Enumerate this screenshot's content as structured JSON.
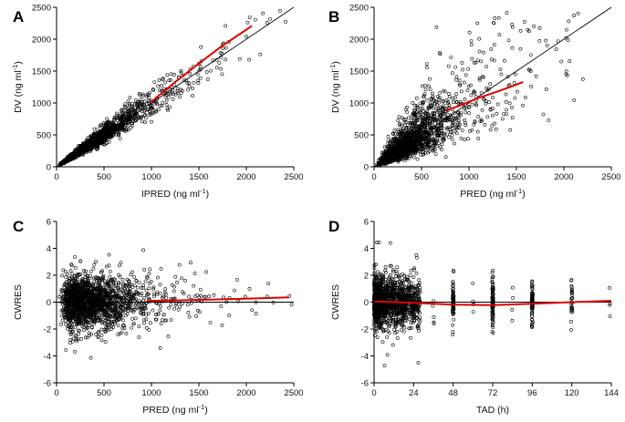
{
  "chart_data": [
    {
      "panel": "A",
      "type": "scatter",
      "xlabel_parts": [
        "IPRED (ng ml",
        "-1",
        ")"
      ],
      "ylabel_parts": [
        "DV (ng ml",
        "-1",
        ")"
      ],
      "xlim": [
        0,
        2500
      ],
      "ylim": [
        0,
        2500
      ],
      "xticks": [
        0,
        500,
        1000,
        1500,
        2000,
        2500
      ],
      "yticks": [
        0,
        500,
        1000,
        1500,
        2000,
        2500
      ],
      "reference": "identity",
      "n_points": 1800,
      "generator": {
        "xmode": "lognorm",
        "xmu": 5.85,
        "xsd": 0.75,
        "relation": "proportional",
        "slope": 1.0,
        "noise_sd": 0.13,
        "clip": [
          5,
          2480
        ]
      },
      "smooth": {
        "x": [
          1000,
          1250,
          1500,
          1750,
          2060
        ],
        "y": [
          1020,
          1330,
          1620,
          1900,
          2210
        ]
      }
    },
    {
      "panel": "B",
      "type": "scatter",
      "xlabel_parts": [
        "PRED (ng ml",
        "-1",
        ")"
      ],
      "ylabel_parts": [
        "DV (ng ml",
        "-1",
        ")"
      ],
      "xlim": [
        0,
        2500
      ],
      "ylim": [
        0,
        2500
      ],
      "xticks": [
        0,
        500,
        1000,
        1500,
        2000,
        2500
      ],
      "yticks": [
        0,
        500,
        1000,
        1500,
        2000,
        2500
      ],
      "reference": "identity",
      "n_points": 1800,
      "generator": {
        "xmode": "lognorm",
        "xmu": 5.85,
        "xsd": 0.72,
        "relation": "proportional",
        "slope": 1.0,
        "noise_sd": 0.4,
        "clip": [
          5,
          2480
        ]
      },
      "smooth": {
        "x": [
          760,
          900,
          1100,
          1300,
          1450,
          1570
        ],
        "y": [
          880,
          960,
          1080,
          1180,
          1260,
          1330
        ]
      }
    },
    {
      "panel": "C",
      "type": "scatter",
      "xlabel_parts": [
        "PRED (ng ml",
        "-1",
        ")"
      ],
      "ylabel_parts": [
        "CWRES",
        "",
        ""
      ],
      "xlim": [
        0,
        2500
      ],
      "ylim": [
        -6,
        6
      ],
      "xticks": [
        0,
        500,
        1000,
        1500,
        2000,
        2500
      ],
      "yticks": [
        -6,
        -4,
        -2,
        0,
        2,
        4,
        6
      ],
      "reference": "zero",
      "n_points": 1800,
      "generator": {
        "xmode": "lognorm",
        "xmu": 5.85,
        "xsd": 0.72,
        "relation": "residual",
        "noise_sd": 1.0,
        "clip": [
          5,
          2480
        ]
      },
      "smooth": {
        "x": [
          950,
          1200,
          1500,
          1800,
          2100,
          2450
        ],
        "y": [
          0.1,
          0.12,
          0.17,
          0.22,
          0.28,
          0.35
        ]
      }
    },
    {
      "panel": "D",
      "type": "scatter",
      "xlabel_parts": [
        "TAD (h)",
        "",
        ""
      ],
      "ylabel_parts": [
        "CWRES",
        "",
        ""
      ],
      "xlim": [
        0,
        144
      ],
      "ylim": [
        -6,
        6
      ],
      "xticks": [
        0,
        24,
        48,
        72,
        96,
        120,
        144
      ],
      "yticks": [
        -6,
        -4,
        -2,
        0,
        2,
        4,
        6
      ],
      "reference": "zero",
      "n_points": 1500,
      "generator": {
        "xmode": "tad",
        "relation": "residual",
        "noise_sd": 1.0,
        "clusters": [
          [
            36,
            5
          ],
          [
            48,
            70
          ],
          [
            60,
            5
          ],
          [
            72,
            90
          ],
          [
            84,
            4
          ],
          [
            96,
            70
          ],
          [
            120,
            28
          ],
          [
            143,
            4
          ]
        ]
      },
      "smooth": {
        "x": [
          0,
          12,
          24,
          48,
          72,
          96,
          120,
          144
        ],
        "y": [
          0.05,
          0.0,
          -0.05,
          -0.18,
          -0.22,
          -0.12,
          0.0,
          0.1
        ]
      }
    }
  ]
}
